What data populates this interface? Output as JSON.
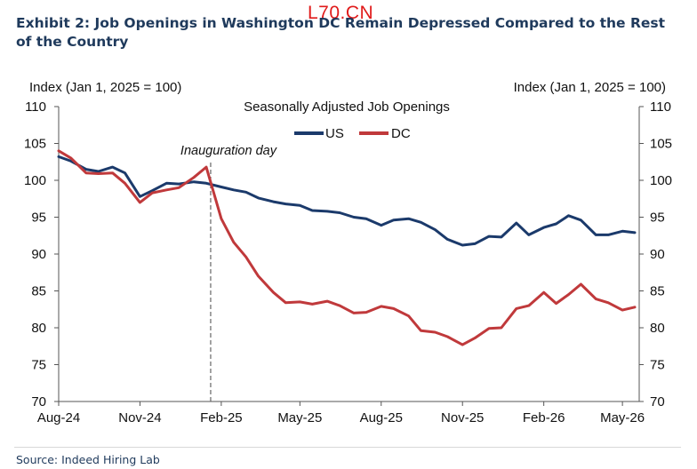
{
  "watermark": "L70.CN",
  "title": "Exhibit 2: Job Openings in Washington DC Remain Depressed Compared to the Rest of the Country",
  "source": "Source: Indeed Hiring Lab",
  "chart_data": {
    "type": "line",
    "subtitle": "Seasonally Adjusted Job Openings",
    "ylabel_left": "Index (Jan 1, 2025 = 100)",
    "ylabel_right": "Index (Jan 1, 2025 = 100)",
    "ylim": [
      70,
      110
    ],
    "yticks": [
      70,
      75,
      80,
      85,
      90,
      95,
      100,
      105,
      110
    ],
    "x_start": "2024-08-01",
    "x_end": "2026-05-20",
    "x_tick_labels": [
      "Aug-24",
      "Nov-24",
      "Feb-25",
      "May-25",
      "Aug-25",
      "Nov-25",
      "Feb-26",
      "May-26"
    ],
    "x_tick_dates": [
      "2024-08-01",
      "2024-11-01",
      "2025-02-01",
      "2025-05-01",
      "2025-08-01",
      "2025-11-01",
      "2026-02-01",
      "2026-05-01"
    ],
    "grid": false,
    "legend_position": "top-center",
    "annotation": {
      "label": "Inauguration day",
      "date": "2025-01-20"
    },
    "series": [
      {
        "name": "US",
        "color": "#1b3a6b",
        "points": [
          [
            "2024-08-01",
            103.2
          ],
          [
            "2024-08-15",
            102.6
          ],
          [
            "2024-09-01",
            101.5
          ],
          [
            "2024-09-15",
            101.2
          ],
          [
            "2024-10-01",
            101.8
          ],
          [
            "2024-10-15",
            101.0
          ],
          [
            "2024-11-01",
            97.8
          ],
          [
            "2024-11-15",
            98.6
          ],
          [
            "2024-12-01",
            99.6
          ],
          [
            "2024-12-15",
            99.5
          ],
          [
            "2025-01-01",
            99.8
          ],
          [
            "2025-01-15",
            99.6
          ],
          [
            "2025-02-01",
            99.1
          ],
          [
            "2025-02-15",
            98.7
          ],
          [
            "2025-03-01",
            98.4
          ],
          [
            "2025-03-15",
            97.6
          ],
          [
            "2025-04-01",
            97.1
          ],
          [
            "2025-04-15",
            96.8
          ],
          [
            "2025-05-01",
            96.6
          ],
          [
            "2025-05-15",
            95.9
          ],
          [
            "2025-06-01",
            95.8
          ],
          [
            "2025-06-15",
            95.6
          ],
          [
            "2025-07-01",
            95.0
          ],
          [
            "2025-07-15",
            94.8
          ],
          [
            "2025-08-01",
            93.9
          ],
          [
            "2025-08-15",
            94.6
          ],
          [
            "2025-09-01",
            94.8
          ],
          [
            "2025-09-15",
            94.3
          ],
          [
            "2025-10-01",
            93.3
          ],
          [
            "2025-10-15",
            92.0
          ],
          [
            "2025-11-01",
            91.2
          ],
          [
            "2025-11-15",
            91.4
          ],
          [
            "2025-12-01",
            92.4
          ],
          [
            "2025-12-15",
            92.3
          ],
          [
            "2026-01-01",
            94.2
          ],
          [
            "2026-01-15",
            92.6
          ],
          [
            "2026-02-01",
            93.6
          ],
          [
            "2026-02-15",
            94.1
          ],
          [
            "2026-03-01",
            95.2
          ],
          [
            "2026-03-15",
            94.6
          ],
          [
            "2026-04-01",
            92.6
          ],
          [
            "2026-04-15",
            92.6
          ],
          [
            "2026-05-01",
            93.1
          ],
          [
            "2026-05-15",
            92.9
          ]
        ]
      },
      {
        "name": "DC",
        "color": "#c0393b",
        "points": [
          [
            "2024-08-01",
            104.0
          ],
          [
            "2024-08-15",
            103.0
          ],
          [
            "2024-09-01",
            101.0
          ],
          [
            "2024-09-15",
            100.9
          ],
          [
            "2024-10-01",
            101.0
          ],
          [
            "2024-10-15",
            99.6
          ],
          [
            "2024-11-01",
            97.0
          ],
          [
            "2024-11-15",
            98.3
          ],
          [
            "2024-12-01",
            98.7
          ],
          [
            "2024-12-15",
            99.0
          ],
          [
            "2025-01-01",
            100.4
          ],
          [
            "2025-01-15",
            101.8
          ],
          [
            "2025-02-01",
            94.8
          ],
          [
            "2025-02-15",
            91.6
          ],
          [
            "2025-03-01",
            89.6
          ],
          [
            "2025-03-15",
            87.0
          ],
          [
            "2025-04-01",
            84.8
          ],
          [
            "2025-04-15",
            83.4
          ],
          [
            "2025-05-01",
            83.5
          ],
          [
            "2025-05-15",
            83.2
          ],
          [
            "2025-06-01",
            83.6
          ],
          [
            "2025-06-15",
            83.0
          ],
          [
            "2025-07-01",
            82.0
          ],
          [
            "2025-07-15",
            82.1
          ],
          [
            "2025-08-01",
            82.9
          ],
          [
            "2025-08-15",
            82.6
          ],
          [
            "2025-09-01",
            81.6
          ],
          [
            "2025-09-15",
            79.6
          ],
          [
            "2025-10-01",
            79.4
          ],
          [
            "2025-10-15",
            78.8
          ],
          [
            "2025-11-01",
            77.7
          ],
          [
            "2025-11-15",
            78.6
          ],
          [
            "2025-12-01",
            79.9
          ],
          [
            "2025-12-15",
            80.0
          ],
          [
            "2026-01-01",
            82.6
          ],
          [
            "2026-01-15",
            83.0
          ],
          [
            "2026-02-01",
            84.8
          ],
          [
            "2026-02-15",
            83.3
          ],
          [
            "2026-03-01",
            84.5
          ],
          [
            "2026-03-15",
            85.9
          ],
          [
            "2026-04-01",
            83.9
          ],
          [
            "2026-04-15",
            83.4
          ],
          [
            "2026-05-01",
            82.4
          ],
          [
            "2026-05-15",
            82.8
          ]
        ]
      }
    ]
  }
}
